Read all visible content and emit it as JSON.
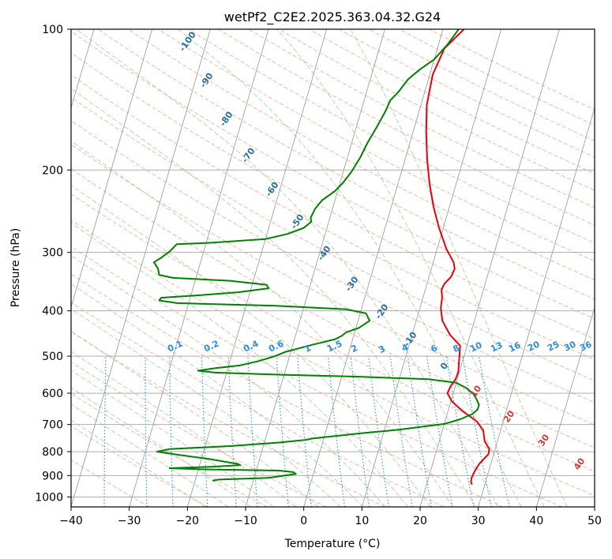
{
  "chart_data": {
    "type": "line",
    "title": "wetPf2_C2E2.2025.363.04.32.G24",
    "xlabel": "Temperature (°C)",
    "ylabel": "Pressure (hPa)",
    "xlim": [
      -40,
      50
    ],
    "ylim": [
      1050,
      100
    ],
    "y_scale": "log",
    "grid": true,
    "x_ticks": [
      -40,
      -30,
      -20,
      -10,
      0,
      10,
      20,
      30,
      40,
      50
    ],
    "y_ticks": [
      100,
      200,
      300,
      400,
      500,
      600,
      700,
      800,
      900,
      1000
    ],
    "series": [
      {
        "color": "#e8000b",
        "points": [
          [
            3.6,
            100
          ],
          [
            1.2,
            110
          ],
          [
            0.5,
            125
          ],
          [
            1.0,
            145
          ],
          [
            2.2,
            165
          ],
          [
            3.8,
            190
          ],
          [
            5.5,
            215
          ],
          [
            7.3,
            240
          ],
          [
            9.2,
            265
          ],
          [
            11.6,
            295
          ],
          [
            13.5,
            315
          ],
          [
            14.0,
            325
          ],
          [
            13.8,
            338
          ],
          [
            13.0,
            350
          ],
          [
            12.8,
            360
          ],
          [
            13.3,
            375
          ],
          [
            13.6,
            395
          ],
          [
            14.5,
            420
          ],
          [
            16.5,
            450
          ],
          [
            18.8,
            475
          ],
          [
            19.2,
            500
          ],
          [
            19.5,
            520
          ],
          [
            19.8,
            540
          ],
          [
            19.7,
            560
          ],
          [
            19.2,
            580
          ],
          [
            19.0,
            600
          ],
          [
            20.2,
            625
          ],
          [
            22.5,
            655
          ],
          [
            25.5,
            690
          ],
          [
            27.0,
            720
          ],
          [
            27.8,
            760
          ],
          [
            29.0,
            790
          ],
          [
            29.1,
            810
          ],
          [
            28.0,
            850
          ],
          [
            27.6,
            880
          ],
          [
            27.4,
            910
          ],
          [
            27.5,
            930
          ],
          [
            27.8,
            940
          ]
        ]
      },
      {
        "color": "#008000",
        "points": [
          [
            2.7,
            100
          ],
          [
            1.5,
            108
          ],
          [
            0.0,
            116
          ],
          [
            -2.0,
            122
          ],
          [
            -3.5,
            128
          ],
          [
            -4.5,
            136
          ],
          [
            -5.5,
            142
          ],
          [
            -5.8,
            150
          ],
          [
            -6.5,
            162
          ],
          [
            -7.3,
            175
          ],
          [
            -7.8,
            188
          ],
          [
            -8.6,
            202
          ],
          [
            -9.5,
            213
          ],
          [
            -10.5,
            222
          ],
          [
            -12.2,
            232
          ],
          [
            -13.0,
            242
          ],
          [
            -13.3,
            253
          ],
          [
            -13.0,
            258
          ],
          [
            -14.0,
            266
          ],
          [
            -16.5,
            274
          ],
          [
            -20.0,
            281
          ],
          [
            -29.0,
            286
          ],
          [
            -35.0,
            288
          ],
          [
            -35.8,
            298
          ],
          [
            -37.0,
            308
          ],
          [
            -38.0,
            315
          ],
          [
            -37.0,
            325
          ],
          [
            -36.5,
            335
          ],
          [
            -34.0,
            340
          ],
          [
            -24.0,
            345
          ],
          [
            -17.5,
            352
          ],
          [
            -17.0,
            358
          ],
          [
            -22.0,
            365
          ],
          [
            -28.0,
            370
          ],
          [
            -35.0,
            375
          ],
          [
            -35.2,
            380
          ],
          [
            -32.0,
            385
          ],
          [
            -15.0,
            390
          ],
          [
            -2.5,
            397
          ],
          [
            1.0,
            405
          ],
          [
            2.0,
            420
          ],
          [
            0.5,
            435
          ],
          [
            -1.5,
            445
          ],
          [
            -2.0,
            452
          ],
          [
            -3.0,
            460
          ],
          [
            -6.5,
            472
          ],
          [
            -11.0,
            490
          ],
          [
            -12.5,
            500
          ],
          [
            -15.0,
            512
          ],
          [
            -18.0,
            523
          ],
          [
            -22.0,
            530
          ],
          [
            -25.0,
            537
          ],
          [
            -22.0,
            542
          ],
          [
            -10.0,
            548
          ],
          [
            2.5,
            553
          ],
          [
            15.0,
            560
          ],
          [
            20.0,
            570
          ],
          [
            22.0,
            585
          ],
          [
            23.5,
            602
          ],
          [
            24.3,
            618
          ],
          [
            25.0,
            635
          ],
          [
            25.0,
            650
          ],
          [
            24.3,
            665
          ],
          [
            22.5,
            682
          ],
          [
            20.0,
            698
          ],
          [
            12.5,
            718
          ],
          [
            6.5,
            730
          ],
          [
            0.0,
            745
          ],
          [
            -2.0,
            750
          ],
          [
            -3.0,
            755
          ],
          [
            -7.5,
            765
          ],
          [
            -15.5,
            778
          ],
          [
            -26.0,
            790
          ],
          [
            -28.0,
            800
          ],
          [
            -25.0,
            810
          ],
          [
            -18.5,
            830
          ],
          [
            -13.5,
            850
          ],
          [
            -13.0,
            855
          ],
          [
            -18.0,
            862
          ],
          [
            -25.0,
            868
          ],
          [
            -19.0,
            873
          ],
          [
            -6.0,
            878
          ],
          [
            -3.5,
            885
          ],
          [
            -3.0,
            893
          ],
          [
            -7.5,
            910
          ],
          [
            -16.0,
            918
          ],
          [
            -17.0,
            923
          ]
        ]
      }
    ],
    "dry_adiabat_labels": [
      "-100",
      "-90",
      "-80",
      "-70",
      "-60",
      "-50",
      "-40",
      "-30",
      "-20",
      "-10"
    ],
    "moist_adiabat_labels": [
      "0",
      "10",
      "20",
      "30",
      "40"
    ],
    "mixing_ratio_labels": [
      "0.1",
      "0.2",
      "0.4",
      "0.6",
      "1",
      "1.5",
      "2",
      "3",
      "4",
      "6",
      "8",
      "10",
      "13",
      "16",
      "20",
      "25",
      "30",
      "36"
    ]
  },
  "colors": {
    "temperature": "#e8000b",
    "dewpoint": "#008000",
    "dry_adiabat": "#f2a07b",
    "moist_adiabat": "#7fbf7f",
    "mixing_ratio": "#2b8ce0",
    "isotherm": "#a0a0a0"
  }
}
